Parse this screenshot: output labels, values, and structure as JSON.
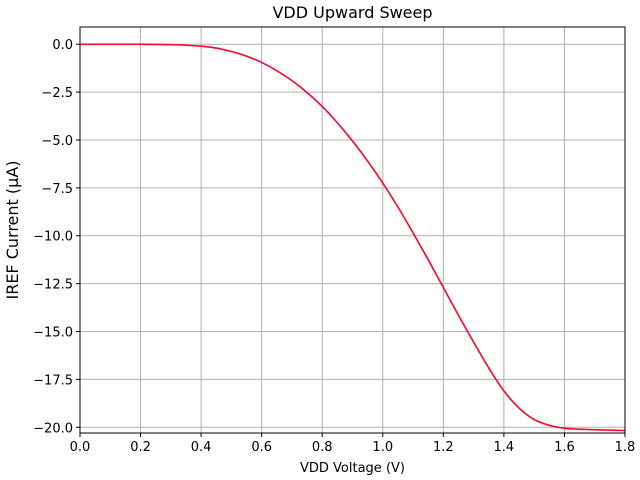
{
  "chart_data": {
    "type": "line",
    "title": "VDD Upward Sweep",
    "xlabel": "VDD Voltage (V)",
    "ylabel": "IREF Current (μA)",
    "xlim": [
      0.0,
      1.8
    ],
    "ylim": [
      -20.3,
      0.9
    ],
    "grid": true,
    "x_ticks": [
      0.0,
      0.2,
      0.4,
      0.6,
      0.8,
      1.0,
      1.2,
      1.4,
      1.6,
      1.8
    ],
    "x_tick_labels": [
      "0.0",
      "0.2",
      "0.4",
      "0.6",
      "0.8",
      "1.0",
      "1.2",
      "1.4",
      "1.6",
      "1.8"
    ],
    "y_ticks": [
      0.0,
      -2.5,
      -5.0,
      -7.5,
      -10.0,
      -12.5,
      -15.0,
      -17.5,
      -20.0
    ],
    "y_tick_labels": [
      "0.0",
      "−2.5",
      "−5.0",
      "−7.5",
      "−10.0",
      "−12.5",
      "−15.0",
      "−17.5",
      "−20.0"
    ],
    "series": [
      {
        "color": "#ff0028",
        "x": [
          0.0,
          0.1,
          0.2,
          0.3,
          0.4,
          0.45,
          0.5,
          0.55,
          0.6,
          0.65,
          0.7,
          0.75,
          0.8,
          0.85,
          0.9,
          0.95,
          1.0,
          1.05,
          1.1,
          1.15,
          1.2,
          1.25,
          1.3,
          1.35,
          1.4,
          1.45,
          1.5,
          1.55,
          1.6,
          1.65,
          1.7,
          1.75,
          1.8
        ],
        "y": [
          0.0,
          0.0,
          0.0,
          -0.02,
          -0.1,
          -0.2,
          -0.38,
          -0.62,
          -0.95,
          -1.38,
          -1.9,
          -2.52,
          -3.25,
          -4.1,
          -5.05,
          -6.1,
          -7.25,
          -8.5,
          -9.85,
          -11.25,
          -12.7,
          -14.15,
          -15.55,
          -16.9,
          -18.1,
          -19.0,
          -19.6,
          -19.9,
          -20.05,
          -20.1,
          -20.13,
          -20.15,
          -20.17
        ]
      }
    ]
  }
}
